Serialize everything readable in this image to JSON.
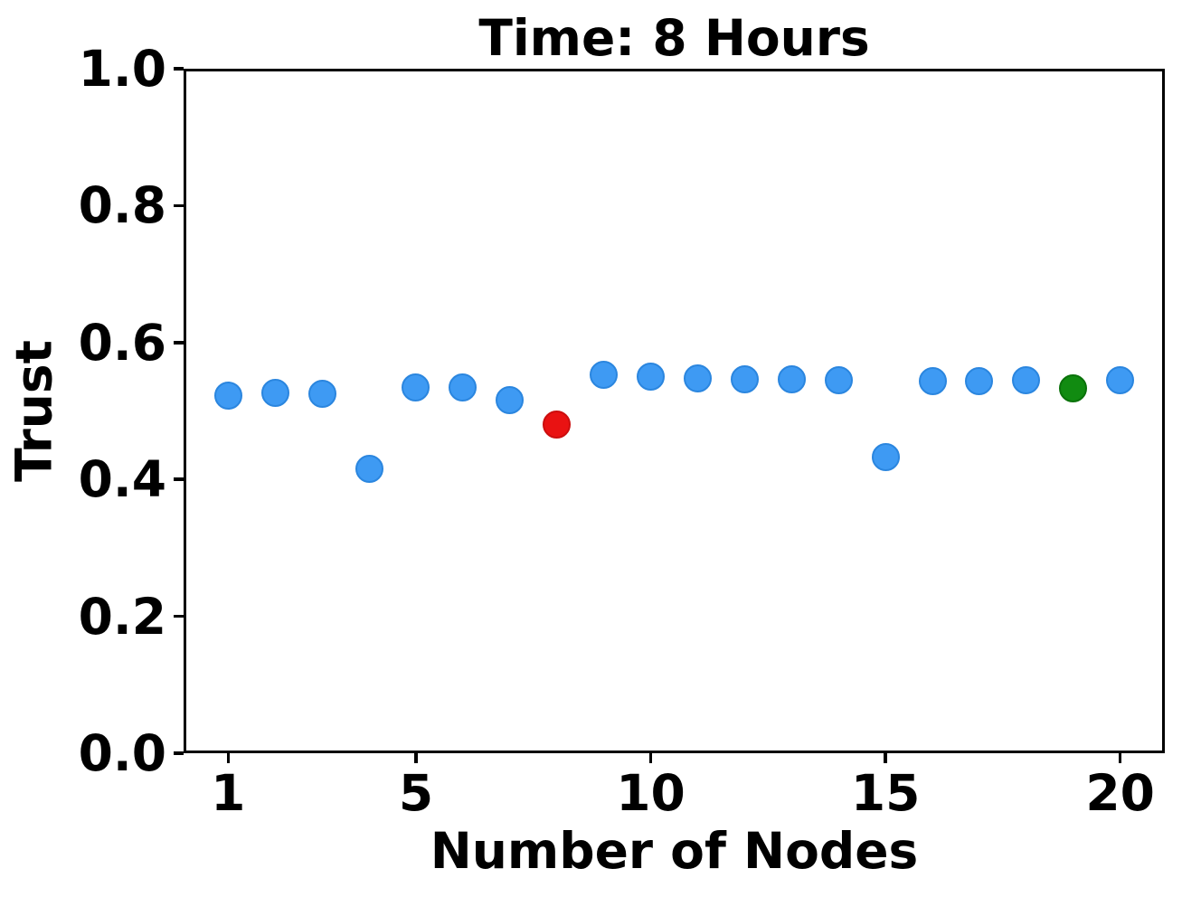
{
  "chart_data": {
    "type": "scatter",
    "title": "Time: 8 Hours",
    "xlabel": "Number of Nodes",
    "ylabel": "Trust",
    "xlim": [
      0.05,
      20.95
    ],
    "ylim": [
      0.0,
      1.0
    ],
    "xticks": [
      1,
      5,
      10,
      15,
      20
    ],
    "yticks": [
      0.0,
      0.2,
      0.4,
      0.6,
      0.8,
      1.0
    ],
    "grid": false,
    "legend": "none",
    "marker_diameter_px": 31,
    "palette": {
      "blue": {
        "fill": "#3E9AF3",
        "edge": "#2B86DF"
      },
      "red": {
        "fill": "#E91212",
        "edge": "#CC0E0E"
      },
      "green": {
        "fill": "#118B11",
        "edge": "#0A720A"
      }
    },
    "points": [
      {
        "x": 1,
        "y": 0.523,
        "color": "blue"
      },
      {
        "x": 2,
        "y": 0.526,
        "color": "blue"
      },
      {
        "x": 3,
        "y": 0.525,
        "color": "blue"
      },
      {
        "x": 4,
        "y": 0.415,
        "color": "blue"
      },
      {
        "x": 5,
        "y": 0.534,
        "color": "blue"
      },
      {
        "x": 6,
        "y": 0.534,
        "color": "blue"
      },
      {
        "x": 7,
        "y": 0.516,
        "color": "blue"
      },
      {
        "x": 8,
        "y": 0.48,
        "color": "red"
      },
      {
        "x": 9,
        "y": 0.553,
        "color": "blue"
      },
      {
        "x": 10,
        "y": 0.55,
        "color": "blue"
      },
      {
        "x": 11,
        "y": 0.548,
        "color": "blue"
      },
      {
        "x": 12,
        "y": 0.546,
        "color": "blue"
      },
      {
        "x": 13,
        "y": 0.546,
        "color": "blue"
      },
      {
        "x": 14,
        "y": 0.545,
        "color": "blue"
      },
      {
        "x": 15,
        "y": 0.432,
        "color": "blue"
      },
      {
        "x": 16,
        "y": 0.544,
        "color": "blue"
      },
      {
        "x": 17,
        "y": 0.544,
        "color": "blue"
      },
      {
        "x": 18,
        "y": 0.545,
        "color": "blue"
      },
      {
        "x": 19,
        "y": 0.533,
        "color": "green"
      },
      {
        "x": 20,
        "y": 0.545,
        "color": "blue"
      }
    ]
  }
}
